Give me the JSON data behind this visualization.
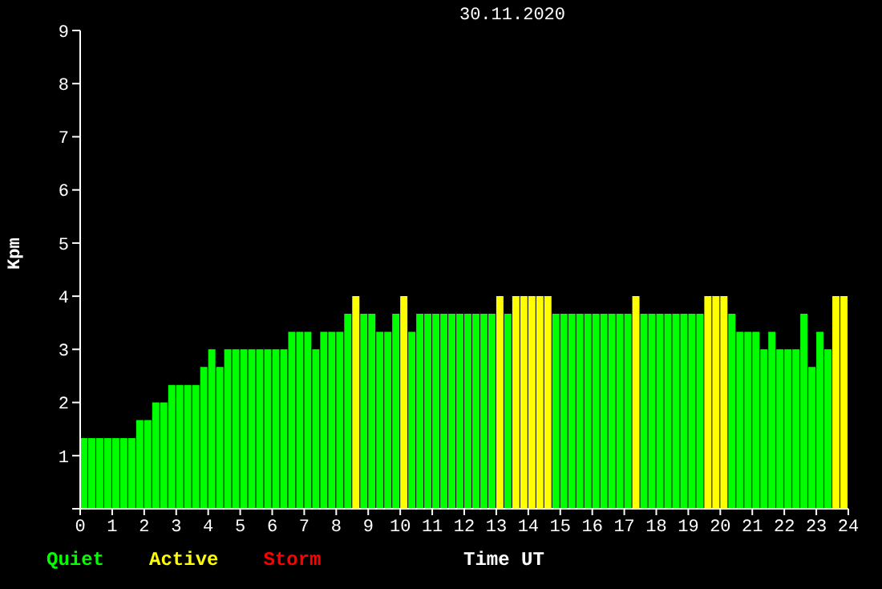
{
  "chart_data": {
    "type": "bar",
    "title": "30.11.2020",
    "xlabel": "Time UT",
    "ylabel": "Kpm",
    "stacked": true,
    "legend": "bottom left",
    "x": [
      0.125,
      0.375,
      0.625,
      0.875,
      1.125,
      1.375,
      1.625,
      1.875,
      2.125,
      2.375,
      2.625,
      2.875,
      3.125,
      3.375,
      3.625,
      3.875,
      4.125,
      4.375,
      4.625,
      4.875,
      5.125,
      5.375,
      5.625,
      5.875,
      6.125,
      6.375,
      6.625,
      6.875,
      7.125,
      7.375,
      7.625,
      7.875,
      8.125,
      8.375,
      8.625,
      8.875,
      9.125,
      9.375,
      9.625,
      9.875,
      10.125,
      10.375,
      10.625,
      10.875,
      11.125,
      11.375,
      11.625,
      11.875,
      12.125,
      12.375,
      12.625,
      12.875,
      13.125,
      13.375,
      13.625,
      13.875,
      14.125,
      14.375,
      14.625,
      14.875,
      15.125,
      15.375,
      15.625,
      15.875,
      16.125,
      16.375,
      16.625,
      16.875,
      17.125,
      17.375,
      17.625,
      17.875,
      18.125,
      18.375,
      18.625,
      18.875,
      19.125,
      19.375,
      19.625,
      19.875,
      20.125,
      20.375,
      20.625,
      20.875,
      21.125,
      21.375,
      21.625,
      21.875,
      22.125,
      22.375,
      22.625,
      22.875,
      23.125,
      23.375,
      23.625,
      23.875
    ],
    "series": [
      {
        "name": "Quiet",
        "color": "#00ff00",
        "values": [
          1.33,
          1.33,
          1.33,
          1.33,
          1.33,
          1.33,
          1.33,
          1.67,
          1.67,
          2,
          2,
          2.33,
          2.33,
          2.33,
          2.33,
          2.67,
          3,
          2.67,
          3,
          3,
          3,
          3,
          3,
          3,
          3,
          3,
          3.33,
          3.33,
          3.33,
          3,
          3.33,
          3.33,
          3.33,
          3.67,
          null,
          3.67,
          3.67,
          3.33,
          3.33,
          3.67,
          null,
          3.33,
          3.67,
          3.67,
          3.67,
          3.67,
          3.67,
          3.67,
          3.67,
          3.67,
          3.67,
          3.67,
          null,
          3.67,
          null,
          null,
          null,
          null,
          null,
          3.67,
          3.67,
          3.67,
          3.67,
          3.67,
          3.67,
          3.67,
          3.67,
          3.67,
          3.67,
          null,
          3.67,
          3.67,
          3.67,
          3.67,
          3.67,
          3.67,
          3.67,
          3.67,
          null,
          null,
          null,
          3.67,
          3.33,
          3.33,
          3.33,
          3,
          3.33,
          3,
          3,
          3,
          3.67,
          2.67,
          3.33,
          3,
          null,
          null
        ]
      },
      {
        "name": "Active",
        "color": "#ffff00",
        "values": [
          null,
          null,
          null,
          null,
          null,
          null,
          null,
          null,
          null,
          null,
          null,
          null,
          null,
          null,
          null,
          null,
          null,
          null,
          null,
          null,
          null,
          null,
          null,
          null,
          null,
          null,
          null,
          null,
          null,
          null,
          null,
          null,
          null,
          null,
          4,
          null,
          null,
          null,
          null,
          null,
          4,
          null,
          null,
          null,
          null,
          null,
          null,
          null,
          null,
          null,
          null,
          null,
          4,
          null,
          4,
          4,
          4,
          4,
          4,
          null,
          null,
          null,
          null,
          null,
          null,
          null,
          null,
          null,
          null,
          4,
          null,
          null,
          null,
          null,
          null,
          null,
          null,
          null,
          4,
          4,
          4,
          null,
          null,
          null,
          null,
          null,
          null,
          null,
          null,
          null,
          null,
          null,
          null,
          null,
          4,
          4
        ]
      },
      {
        "name": "Storm",
        "color": "#ff0000",
        "values": [
          null,
          null,
          null,
          null,
          null,
          null,
          null,
          null,
          null,
          null,
          null,
          null,
          null,
          null,
          null,
          null,
          null,
          null,
          null,
          null,
          null,
          null,
          null,
          null,
          null,
          null,
          null,
          null,
          null,
          null,
          null,
          null,
          null,
          null,
          null,
          null,
          null,
          null,
          null,
          null,
          null,
          null,
          null,
          null,
          null,
          null,
          null,
          null,
          null,
          null,
          null,
          null,
          null,
          null,
          null,
          null,
          null,
          null,
          null,
          null,
          null,
          null,
          null,
          null,
          null,
          null,
          null,
          null,
          null,
          null,
          null,
          null,
          null,
          null,
          null,
          null,
          null,
          null,
          null,
          null,
          null,
          null,
          null,
          null,
          null,
          null,
          null,
          null,
          null,
          null,
          null,
          null,
          null,
          null,
          null,
          null
        ]
      }
    ],
    "xlim": [
      0,
      24
    ],
    "xticks": [
      0,
      1,
      2,
      3,
      4,
      5,
      6,
      7,
      8,
      9,
      10,
      11,
      12,
      13,
      14,
      15,
      16,
      17,
      18,
      19,
      20,
      21,
      22,
      23,
      24
    ],
    "ylim": [
      0,
      9
    ],
    "yticks": [
      {
        "value": 0,
        "label": null
      },
      1,
      2,
      3,
      4,
      5,
      6,
      7,
      8,
      9
    ]
  }
}
